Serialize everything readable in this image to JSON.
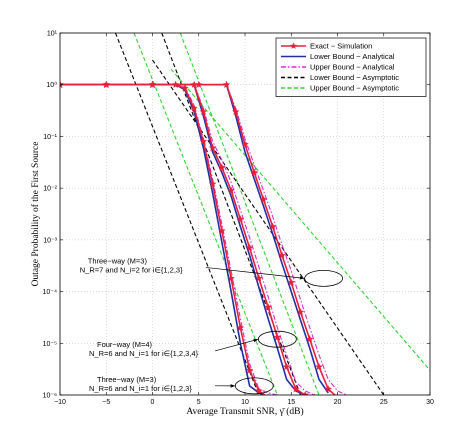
{
  "chart_data": {
    "type": "line",
    "title": "",
    "xlabel": "Average Transmit SNR, γ̄ (dB)",
    "ylabel": "Outage Probability of the First Source",
    "xlim": [
      -10,
      30
    ],
    "ylim_log10": [
      -6,
      1
    ],
    "y_scale": "log",
    "grid": "dotted",
    "legend_position": "top-right",
    "x_ticks": [
      "−10",
      "−5",
      "0",
      "5",
      "10",
      "15",
      "20",
      "25",
      "30"
    ],
    "y_ticks": [
      "10⁻⁶",
      "10⁻⁵",
      "10⁻⁴",
      "10⁻³",
      "10⁻²",
      "10⁻¹",
      "10⁰",
      "10¹"
    ],
    "legend": [
      {
        "label": "Exact − Simulation",
        "color": "#e8203a",
        "style": "solid-star"
      },
      {
        "label": "Lower Bound − Analytical",
        "color": "#1f2fa8",
        "style": "solid"
      },
      {
        "label": "Upper Bound − Analytical",
        "color": "#d62bd6",
        "style": "dashdot"
      },
      {
        "label": "Lower Bound − Asymptotic",
        "color": "#000000",
        "style": "dashed"
      },
      {
        "label": "Upper Bound − Asymptotic",
        "color": "#2fd42f",
        "style": "dashed"
      }
    ],
    "series": [
      {
        "group": "A",
        "kind": "exact",
        "x": [
          -10,
          -5,
          0,
          2.5,
          3.5,
          4.5,
          5.5,
          6.5,
          7.5,
          8.5,
          9.5,
          10.5,
          11.5,
          12.5
        ],
        "y": [
          1,
          1,
          1,
          1,
          0.85,
          0.35,
          0.08,
          0.012,
          0.0015,
          0.00018,
          2e-05,
          3e-06,
          1.2e-06,
          9e-07
        ]
      },
      {
        "group": "A",
        "kind": "lower_analytical",
        "x": [
          -10,
          -5,
          0,
          2.5,
          3.5,
          4.5,
          5.5,
          6.5,
          7.5,
          8.5,
          9.5,
          10.5,
          11.5,
          12
        ],
        "y": [
          1,
          1,
          1,
          1,
          0.8,
          0.3,
          0.06,
          0.008,
          0.0009,
          0.0001,
          1e-05,
          1.5e-06,
          1.1e-06,
          1e-06
        ]
      },
      {
        "group": "A",
        "kind": "upper_analytical",
        "x": [
          -10,
          -5,
          0,
          2.5,
          3.5,
          4.5,
          5.5,
          6.5,
          7.5,
          8.5,
          9.5,
          10.5,
          11.5,
          12.5,
          13.5
        ],
        "y": [
          1,
          1,
          1,
          1,
          0.9,
          0.4,
          0.09,
          0.015,
          0.002,
          0.00025,
          3e-05,
          4e-06,
          1.3e-06,
          1.1e-06,
          1e-06
        ]
      },
      {
        "group": "A",
        "kind": "lower_asymptotic",
        "x": [
          -4,
          11.5
        ],
        "y": [
          10,
          1e-06
        ]
      },
      {
        "group": "A",
        "kind": "upper_asymptotic",
        "x": [
          -2,
          13.5
        ],
        "y": [
          10,
          1e-06
        ]
      },
      {
        "group": "B",
        "kind": "exact",
        "x": [
          -10,
          -5,
          0,
          4.5,
          5.5,
          6.5,
          7.5,
          8.5,
          9.5,
          10.5,
          11.5,
          12.5,
          13.5,
          14.5,
          15.5,
          16.5,
          17.5
        ],
        "y": [
          1,
          1,
          1,
          1,
          0.3,
          0.06,
          0.025,
          0.009,
          0.0025,
          0.0007,
          0.00018,
          5e-05,
          1.3e-05,
          3.5e-06,
          1.3e-06,
          1e-06,
          9e-07
        ]
      },
      {
        "group": "B",
        "kind": "lower_analytical",
        "x": [
          -10,
          -5,
          0,
          4.5,
          5.5,
          6.5,
          7.5,
          8.5,
          9.5,
          10.5,
          11.5,
          12.5,
          13.5,
          14.5,
          15.5,
          16.5
        ],
        "y": [
          1,
          1,
          1,
          1,
          0.25,
          0.05,
          0.02,
          0.007,
          0.0018,
          0.0005,
          0.00012,
          3e-05,
          8e-06,
          2e-06,
          1.2e-06,
          1e-06
        ]
      },
      {
        "group": "B",
        "kind": "upper_analytical",
        "x": [
          -10,
          -5,
          0,
          4.5,
          5.5,
          6.5,
          7.5,
          8.5,
          9.5,
          10.5,
          11.5,
          12.5,
          13.5,
          14.5,
          15.5,
          16.5,
          17.5,
          18.5
        ],
        "y": [
          1,
          1,
          1,
          1,
          0.35,
          0.08,
          0.035,
          0.013,
          0.0038,
          0.0011,
          0.0003,
          8e-05,
          2e-05,
          6e-06,
          1.8e-06,
          1.2e-06,
          1e-06,
          9e-07
        ]
      },
      {
        "group": "B",
        "kind": "lower_asymptotic",
        "x": [
          1,
          16
        ],
        "y": [
          10,
          1e-06
        ]
      },
      {
        "group": "B",
        "kind": "upper_asymptotic",
        "x": [
          3,
          18
        ],
        "y": [
          10,
          1e-06
        ]
      },
      {
        "group": "C",
        "kind": "exact",
        "x": [
          -10,
          -5,
          0,
          5,
          8,
          9,
          10,
          11,
          12,
          13,
          14,
          15,
          16,
          17,
          18,
          19,
          20
        ],
        "y": [
          1,
          1,
          1,
          1,
          1,
          0.3,
          0.07,
          0.02,
          0.006,
          0.0018,
          0.0005,
          0.00015,
          4e-05,
          1.2e-05,
          3.5e-06,
          1.3e-06,
          9e-07
        ]
      },
      {
        "group": "C",
        "kind": "lower_analytical",
        "x": [
          -10,
          -5,
          0,
          5,
          8,
          9,
          10,
          11,
          12,
          13,
          14,
          15,
          16,
          17,
          18,
          19
        ],
        "y": [
          1,
          1,
          1,
          1,
          1,
          0.25,
          0.05,
          0.015,
          0.0045,
          0.0013,
          0.00035,
          0.0001,
          2.8e-05,
          8e-06,
          2e-06,
          1.1e-06
        ]
      },
      {
        "group": "C",
        "kind": "upper_analytical",
        "x": [
          -10,
          -5,
          0,
          5,
          8,
          9,
          10,
          11,
          12,
          13,
          14,
          15,
          16,
          17,
          18,
          19,
          20,
          21
        ],
        "y": [
          1,
          1,
          1,
          1,
          1,
          0.35,
          0.09,
          0.028,
          0.009,
          0.0028,
          0.0008,
          0.00025,
          7e-05,
          2e-05,
          6e-06,
          2e-06,
          1.2e-06,
          1e-06
        ]
      },
      {
        "group": "C",
        "kind": "lower_asymptotic",
        "x": [
          0,
          25
        ],
        "y": [
          3,
          1e-06
        ]
      },
      {
        "group": "C",
        "kind": "upper_asymptotic",
        "x": [
          2,
          30
        ],
        "y": [
          2,
          3e-06
        ]
      }
    ],
    "annotations": [
      {
        "lines": [
          "Three−way (M=3)",
          "N_R=7 and N_i=2 for i∈{1,2,3}"
        ],
        "label_x": -7,
        "label_y": 0.00035,
        "ellipse_x": 18.5,
        "ellipse_y": 0.00018
      },
      {
        "lines": [
          "Four−way (M=4)",
          "N_R=6 and N_i=1 for i∈{1,2,3,4}"
        ],
        "label_x": -6,
        "label_y": 8.5e-06,
        "ellipse_x": 13.5,
        "ellipse_y": 1.2e-05
      },
      {
        "lines": [
          "Three−way (M=3)",
          "N_R=6 and N_i=1 for i∈{1,2,3}"
        ],
        "label_x": -6,
        "label_y": 1.8e-06,
        "ellipse_x": 11,
        "ellipse_y": 1.5e-06
      }
    ]
  }
}
